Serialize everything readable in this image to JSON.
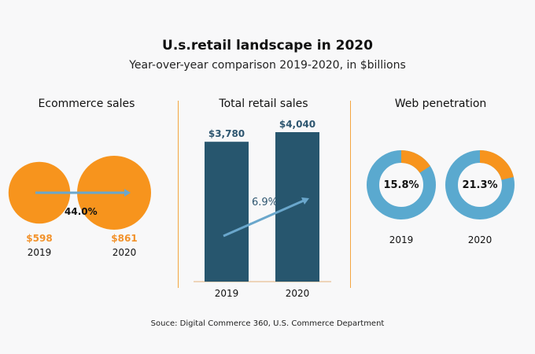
{
  "title": "U.s.retail landscape in 2020",
  "subtitle": "Year-over-year comparison 2019-2020, in $billions",
  "source": "Souce: Digital Commerce 360, U.S. Commerce Department",
  "colors": {
    "orange": "#f7941d",
    "navy": "#27566e",
    "blue": "#5aa9cf",
    "arrow": "#6aa7cc"
  },
  "chart_data": [
    {
      "type": "bubble",
      "title": "Ecommerce sales",
      "categories": [
        "2019",
        "2020"
      ],
      "values": [
        598,
        861
      ],
      "value_labels": [
        "$598",
        "$861"
      ],
      "change_label": "44.0%"
    },
    {
      "type": "bar",
      "title": "Total retail sales",
      "categories": [
        "2019",
        "2020"
      ],
      "values": [
        3780,
        4040
      ],
      "value_labels": [
        "$3,780",
        "$4,040"
      ],
      "change_label": "6.9%"
    },
    {
      "type": "donut",
      "title": "Web penetration",
      "categories": [
        "2019",
        "2020"
      ],
      "values": [
        15.8,
        21.3
      ],
      "value_labels": [
        "15.8%",
        "21.3%"
      ]
    }
  ]
}
